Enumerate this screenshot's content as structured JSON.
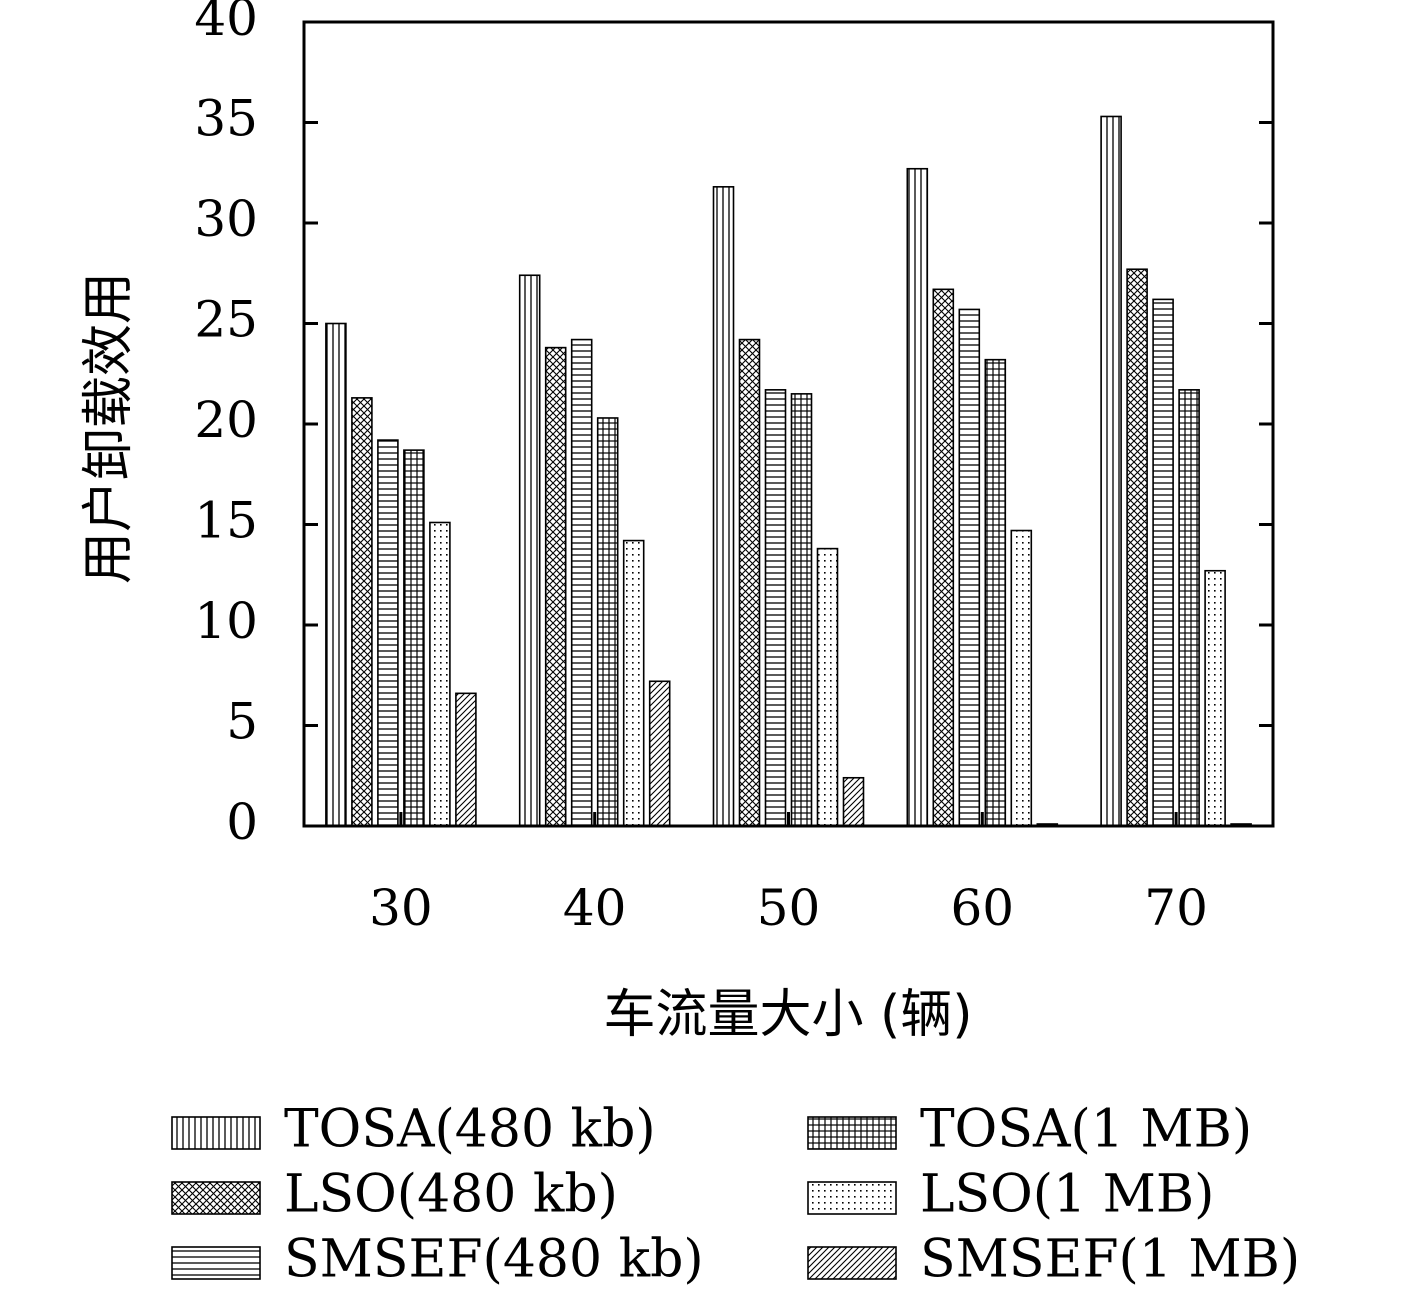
{
  "chart_data": {
    "type": "bar",
    "xlabel": "车流量大小 (辆)",
    "ylabel": "用户卸载效用",
    "categories": [
      "30",
      "40",
      "50",
      "60",
      "70"
    ],
    "ylim": [
      0,
      40
    ],
    "yticks": [
      "0",
      "5",
      "10",
      "15",
      "20",
      "25",
      "30",
      "35",
      "40"
    ],
    "grid": false,
    "legend_placement": "bottom",
    "series": [
      {
        "name": "TOSA(480 kb)",
        "pattern": "vertical-lines",
        "values": [
          25.0,
          27.4,
          31.8,
          32.7,
          35.3
        ]
      },
      {
        "name": "LSO(480 kb)",
        "pattern": "crosshatch",
        "values": [
          21.3,
          23.8,
          24.2,
          26.7,
          27.7
        ]
      },
      {
        "name": "SMSEF(480 kb)",
        "pattern": "horizontal-lines",
        "values": [
          19.2,
          24.2,
          21.7,
          25.7,
          26.2
        ]
      },
      {
        "name": "TOSA(1 MB)",
        "pattern": "grid",
        "values": [
          18.7,
          20.3,
          21.5,
          23.2,
          21.7
        ]
      },
      {
        "name": "LSO(1 MB)",
        "pattern": "dots",
        "values": [
          15.1,
          14.2,
          13.8,
          14.7,
          12.7
        ]
      },
      {
        "name": "SMSEF(1 MB)",
        "pattern": "diagonal-lines",
        "values": [
          6.6,
          7.2,
          2.4,
          0.1,
          0.1
        ]
      }
    ],
    "colors": {
      "stroke": "#000000",
      "fill": "#ffffff"
    }
  }
}
